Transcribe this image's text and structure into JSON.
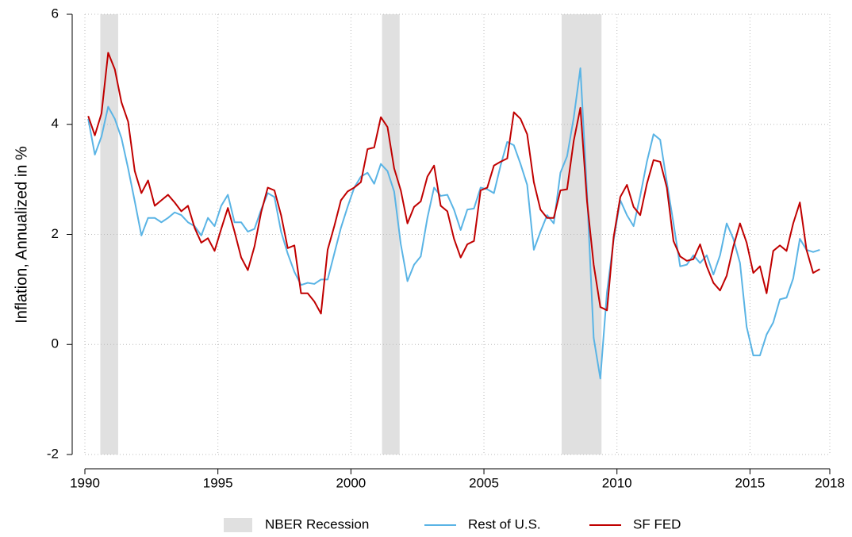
{
  "chart_data": {
    "type": "line",
    "y_label": "Inflation, Annualized in %",
    "xlim": [
      1990,
      2018
    ],
    "xticks": [
      1990,
      1995,
      2000,
      2005,
      2010,
      2015,
      2018
    ],
    "ylim": [
      -2,
      6
    ],
    "yticks": [
      -2,
      0,
      2,
      4,
      6
    ],
    "grid": true,
    "legend": "bottom",
    "shading": {
      "name": "NBER Recession",
      "color": "#e0e0e0",
      "ranges": [
        [
          1990.58,
          1991.25
        ],
        [
          2001.17,
          2001.83
        ],
        [
          2007.92,
          2009.42
        ]
      ]
    },
    "x": [
      1990.125,
      1990.375,
      1990.625,
      1990.875,
      1991.125,
      1991.375,
      1991.625,
      1991.875,
      1992.125,
      1992.375,
      1992.625,
      1992.875,
      1993.125,
      1993.375,
      1993.625,
      1993.875,
      1994.125,
      1994.375,
      1994.625,
      1994.875,
      1995.125,
      1995.375,
      1995.625,
      1995.875,
      1996.125,
      1996.375,
      1996.625,
      1996.875,
      1997.125,
      1997.375,
      1997.625,
      1997.875,
      1998.125,
      1998.375,
      1998.625,
      1998.875,
      1999.125,
      1999.375,
      1999.625,
      1999.875,
      2000.125,
      2000.375,
      2000.625,
      2000.875,
      2001.125,
      2001.375,
      2001.625,
      2001.875,
      2002.125,
      2002.375,
      2002.625,
      2002.875,
      2003.125,
      2003.375,
      2003.625,
      2003.875,
      2004.125,
      2004.375,
      2004.625,
      2004.875,
      2005.125,
      2005.375,
      2005.625,
      2005.875,
      2006.125,
      2006.375,
      2006.625,
      2006.875,
      2007.125,
      2007.375,
      2007.625,
      2007.875,
      2008.125,
      2008.375,
      2008.625,
      2008.875,
      2009.125,
      2009.375,
      2009.625,
      2009.875,
      2010.125,
      2010.375,
      2010.625,
      2010.875,
      2011.125,
      2011.375,
      2011.625,
      2011.875,
      2012.125,
      2012.375,
      2012.625,
      2012.875,
      2013.125,
      2013.375,
      2013.625,
      2013.875,
      2014.125,
      2014.375,
      2014.625,
      2014.875,
      2015.125,
      2015.375,
      2015.625,
      2015.875,
      2016.125,
      2016.375,
      2016.625,
      2016.875,
      2017.125,
      2017.375,
      2017.625
    ],
    "series": [
      {
        "name": "Rest of U.S.",
        "color": "#5ab4e5",
        "values": [
          4.1,
          3.45,
          3.78,
          4.32,
          4.1,
          3.75,
          3.2,
          2.6,
          1.98,
          2.3,
          2.3,
          2.22,
          2.3,
          2.4,
          2.35,
          2.22,
          2.15,
          1.98,
          2.3,
          2.15,
          2.52,
          2.72,
          2.22,
          2.22,
          2.05,
          2.1,
          2.45,
          2.75,
          2.68,
          2.05,
          1.65,
          1.32,
          1.08,
          1.12,
          1.1,
          1.18,
          1.18,
          1.65,
          2.12,
          2.5,
          2.85,
          3.05,
          3.12,
          2.92,
          3.28,
          3.15,
          2.78,
          1.82,
          1.15,
          1.45,
          1.6,
          2.3,
          2.85,
          2.7,
          2.72,
          2.45,
          2.08,
          2.45,
          2.47,
          2.85,
          2.82,
          2.75,
          3.25,
          3.68,
          3.62,
          3.28,
          2.9,
          1.72,
          2.05,
          2.35,
          2.2,
          3.12,
          3.42,
          4.12,
          5.02,
          2.75,
          0.12,
          -0.62,
          0.95,
          1.9,
          2.62,
          2.35,
          2.15,
          2.7,
          3.32,
          3.82,
          3.72,
          2.95,
          2.2,
          1.42,
          1.45,
          1.62,
          1.48,
          1.62,
          1.27,
          1.62,
          2.2,
          1.92,
          1.48,
          0.32,
          -0.2,
          -0.2,
          0.18,
          0.4,
          0.82,
          0.85,
          1.2,
          1.92,
          1.72,
          1.68,
          1.72
        ]
      },
      {
        "name": "SF FED",
        "color": "#c00000",
        "values": [
          4.15,
          3.8,
          4.2,
          5.3,
          5.0,
          4.4,
          4.05,
          3.15,
          2.75,
          2.98,
          2.52,
          2.62,
          2.72,
          2.58,
          2.42,
          2.52,
          2.12,
          1.85,
          1.93,
          1.7,
          2.1,
          2.48,
          2.05,
          1.58,
          1.35,
          1.78,
          2.4,
          2.85,
          2.8,
          2.35,
          1.75,
          1.8,
          0.93,
          0.93,
          0.78,
          0.56,
          1.72,
          2.15,
          2.62,
          2.78,
          2.85,
          2.95,
          3.55,
          3.58,
          4.13,
          3.95,
          3.2,
          2.8,
          2.2,
          2.5,
          2.6,
          3.05,
          3.25,
          2.52,
          2.42,
          1.92,
          1.58,
          1.82,
          1.88,
          2.8,
          2.85,
          3.25,
          3.32,
          3.38,
          4.22,
          4.1,
          3.82,
          2.95,
          2.45,
          2.3,
          2.3,
          2.8,
          2.82,
          3.7,
          4.3,
          2.6,
          1.45,
          0.68,
          0.62,
          1.95,
          2.68,
          2.9,
          2.5,
          2.35,
          2.92,
          3.35,
          3.32,
          2.85,
          1.88,
          1.6,
          1.52,
          1.55,
          1.82,
          1.42,
          1.12,
          0.98,
          1.25,
          1.78,
          2.2,
          1.85,
          1.3,
          1.42,
          0.93,
          1.7,
          1.8,
          1.7,
          2.2,
          2.58,
          1.72,
          1.3,
          1.37
        ]
      }
    ]
  }
}
